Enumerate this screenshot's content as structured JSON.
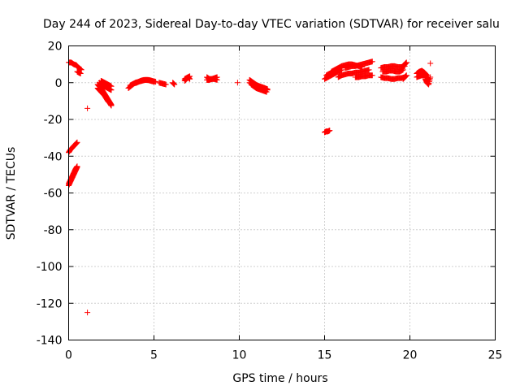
{
  "chart_data": {
    "type": "scatter",
    "title": "Day 244 of 2023, Sidereal Day-to-day VTEC variation (SDTVAR) for receiver salu",
    "xlabel": "GPS time / hours",
    "ylabel": "SDTVAR / TECUs",
    "xlim": [
      0,
      25
    ],
    "ylim": [
      -140,
      20
    ],
    "xticks": [
      "0",
      "5",
      "10",
      "15",
      "20",
      "25"
    ],
    "yticks": [
      "20",
      "0",
      "-20",
      "-40",
      "-60",
      "-80",
      "-100",
      "-120",
      "-140"
    ],
    "grid": true,
    "marker": "plus",
    "color": "#ff0000",
    "segments": [
      {
        "x": [
          0.0,
          0.15,
          0.3,
          0.45,
          0.6,
          0.75
        ],
        "y": [
          11,
          11,
          10,
          9.5,
          8,
          7
        ]
      },
      {
        "x": [
          0.5,
          0.6,
          0.7
        ],
        "y": [
          6,
          5.5,
          5
        ]
      },
      {
        "x": [
          0.0,
          0.1,
          0.2,
          0.3,
          0.4,
          0.5
        ],
        "y": [
          -38,
          -36.5,
          -35.5,
          -34.5,
          -33.5,
          -32.5
        ]
      },
      {
        "x": [
          0.0,
          0.1,
          0.2,
          0.3,
          0.4,
          0.5
        ],
        "y": [
          -56,
          -54,
          -52,
          -50,
          -48,
          -46
        ]
      },
      {
        "x": [
          0.0,
          0.1,
          0.2,
          0.3,
          0.4,
          0.5
        ],
        "y": [
          -55,
          -53,
          -51,
          -49,
          -47,
          -45.5
        ]
      },
      {
        "x": [
          1.7,
          1.8,
          1.9,
          2.0,
          2.1,
          2.2,
          2.3,
          2.4,
          2.5
        ],
        "y": [
          -1,
          -2,
          -3,
          -4.5,
          -6,
          -7.5,
          -9,
          -10.5,
          -12
        ]
      },
      {
        "x": [
          1.7,
          1.8,
          1.9,
          2.0,
          2.1,
          2.2,
          2.3,
          2.4,
          2.5
        ],
        "y": [
          -3,
          -4,
          -5,
          -6,
          -7,
          -8.5,
          -10,
          -11,
          -12.5
        ]
      },
      {
        "x": [
          1.8,
          1.9,
          2.0,
          2.1,
          2.2,
          2.3,
          2.4,
          2.5
        ],
        "y": [
          0,
          -1,
          -1.5,
          -2,
          -2.5,
          -3,
          -3.5,
          -4
        ]
      },
      {
        "x": [
          1.9,
          2.0,
          2.1,
          2.2,
          2.3,
          2.4,
          2.5
        ],
        "y": [
          1,
          0.5,
          0,
          -0.5,
          -1,
          -1.5,
          -2
        ]
      },
      {
        "x": [
          1.1
        ],
        "y": [
          -14
        ]
      },
      {
        "x": [
          1.1
        ],
        "y": [
          -125
        ]
      },
      {
        "x": [
          3.5,
          3.7,
          3.9,
          4.1,
          4.3,
          4.5,
          4.7,
          4.9,
          5.1
        ],
        "y": [
          -3,
          -1.5,
          0,
          0.5,
          1,
          1.5,
          1.5,
          1,
          0.5
        ]
      },
      {
        "x": [
          3.6,
          3.8,
          4.0,
          4.2,
          4.4,
          4.6,
          4.8,
          5.0
        ],
        "y": [
          -1.5,
          -0.5,
          0,
          1,
          1.5,
          1.5,
          1,
          0.5
        ]
      },
      {
        "x": [
          5.3,
          5.5,
          5.7
        ],
        "y": [
          0,
          -0.5,
          -1
        ]
      },
      {
        "x": [
          6.1,
          6.2
        ],
        "y": [
          0,
          -1
        ]
      },
      {
        "x": [
          6.8,
          6.9,
          7.0,
          7.1
        ],
        "y": [
          1,
          2,
          3,
          3.5
        ]
      },
      {
        "x": [
          6.8,
          6.9,
          7.0,
          7.1
        ],
        "y": [
          2,
          2.5,
          3,
          2
        ]
      },
      {
        "x": [
          8.1,
          8.25,
          8.4,
          8.55,
          8.7
        ],
        "y": [
          3,
          2,
          2,
          2.5,
          3
        ]
      },
      {
        "x": [
          8.1,
          8.25,
          8.4,
          8.55,
          8.7
        ],
        "y": [
          1.5,
          1.5,
          2,
          2,
          1.5
        ]
      },
      {
        "x": [
          9.9
        ],
        "y": [
          0
        ]
      },
      {
        "x": [
          10.6,
          10.75,
          10.9,
          11.05,
          11.2,
          11.35,
          11.5,
          11.65
        ],
        "y": [
          0,
          -0.5,
          -1,
          -1.5,
          -2,
          -2.5,
          -3,
          -3.5
        ]
      },
      {
        "x": [
          10.6,
          10.75,
          10.9,
          11.05,
          11.2,
          11.35,
          11.5,
          11.65
        ],
        "y": [
          1.5,
          0.5,
          -0.5,
          -1.5,
          -2,
          -2.5,
          -3,
          -4
        ]
      },
      {
        "x": [
          10.7,
          10.85,
          11.0,
          11.15,
          11.3,
          11.45,
          11.6
        ],
        "y": [
          -1,
          -2,
          -3,
          -3.5,
          -4,
          -4.5,
          -5
        ]
      },
      {
        "x": [
          15.0,
          15.1,
          15.2,
          15.3
        ],
        "y": [
          -27,
          -26.5,
          -26.5,
          -26
        ]
      },
      {
        "x": [
          15.0,
          15.2,
          15.4,
          15.6,
          15.8,
          16.0
        ],
        "y": [
          2,
          3,
          4,
          5,
          6,
          7
        ]
      },
      {
        "x": [
          15.1,
          15.3,
          15.5,
          15.7,
          15.9
        ],
        "y": [
          4,
          5,
          6,
          7,
          8
        ]
      },
      {
        "x": [
          15.4,
          15.6,
          15.8,
          16.0,
          16.2,
          16.4,
          16.6,
          16.8,
          17.0,
          17.2
        ],
        "y": [
          6,
          7,
          8,
          9,
          9.5,
          10,
          10,
          9.5,
          9,
          8.5
        ]
      },
      {
        "x": [
          15.8,
          16.0,
          16.2,
          16.4,
          16.6,
          16.8,
          17.0,
          17.2,
          17.4,
          17.6
        ],
        "y": [
          3,
          4,
          4.5,
          5,
          5,
          5.5,
          5.5,
          6,
          6.5,
          7
        ]
      },
      {
        "x": [
          16.2,
          16.4,
          16.6,
          16.8,
          17.0,
          17.2,
          17.4,
          17.6,
          17.8
        ],
        "y": [
          8,
          8.5,
          9,
          9,
          9.5,
          10,
          10.5,
          11,
          11.5
        ]
      },
      {
        "x": [
          16.8,
          17.0,
          17.2,
          17.4,
          17.6,
          17.8
        ],
        "y": [
          3,
          3,
          3.5,
          3.5,
          4,
          4
        ]
      },
      {
        "x": [
          18.3,
          18.5,
          18.7,
          18.9,
          19.1,
          19.3,
          19.5,
          19.7
        ],
        "y": [
          8,
          8.5,
          8.5,
          9,
          9,
          8.5,
          8.5,
          9
        ]
      },
      {
        "x": [
          18.3,
          18.5,
          18.7,
          18.9,
          19.1,
          19.3,
          19.5,
          19.7
        ],
        "y": [
          3,
          2.5,
          2.5,
          2,
          2,
          2.5,
          2.5,
          3
        ]
      },
      {
        "x": [
          18.4,
          18.6,
          18.8,
          19.0,
          19.2,
          19.4,
          19.6
        ],
        "y": [
          6,
          6,
          6.5,
          6.5,
          6,
          6,
          7
        ]
      },
      {
        "x": [
          19.6,
          19.7,
          19.8
        ],
        "y": [
          9,
          10,
          11
        ]
      },
      {
        "x": [
          19.6,
          19.7,
          19.8
        ],
        "y": [
          2,
          3,
          4
        ]
      },
      {
        "x": [
          20.4,
          20.55,
          20.7,
          20.85,
          21.0
        ],
        "y": [
          5,
          6,
          6.5,
          5.5,
          4
        ]
      },
      {
        "x": [
          20.4,
          20.55,
          20.7,
          20.85,
          21.0,
          21.1
        ],
        "y": [
          3,
          3.5,
          4,
          4,
          3,
          2
        ]
      },
      {
        "x": [
          20.9,
          21.0,
          21.1,
          21.2
        ],
        "y": [
          2,
          0,
          -1,
          3
        ]
      },
      {
        "x": [
          21.2
        ],
        "y": [
          10.5
        ]
      }
    ]
  }
}
